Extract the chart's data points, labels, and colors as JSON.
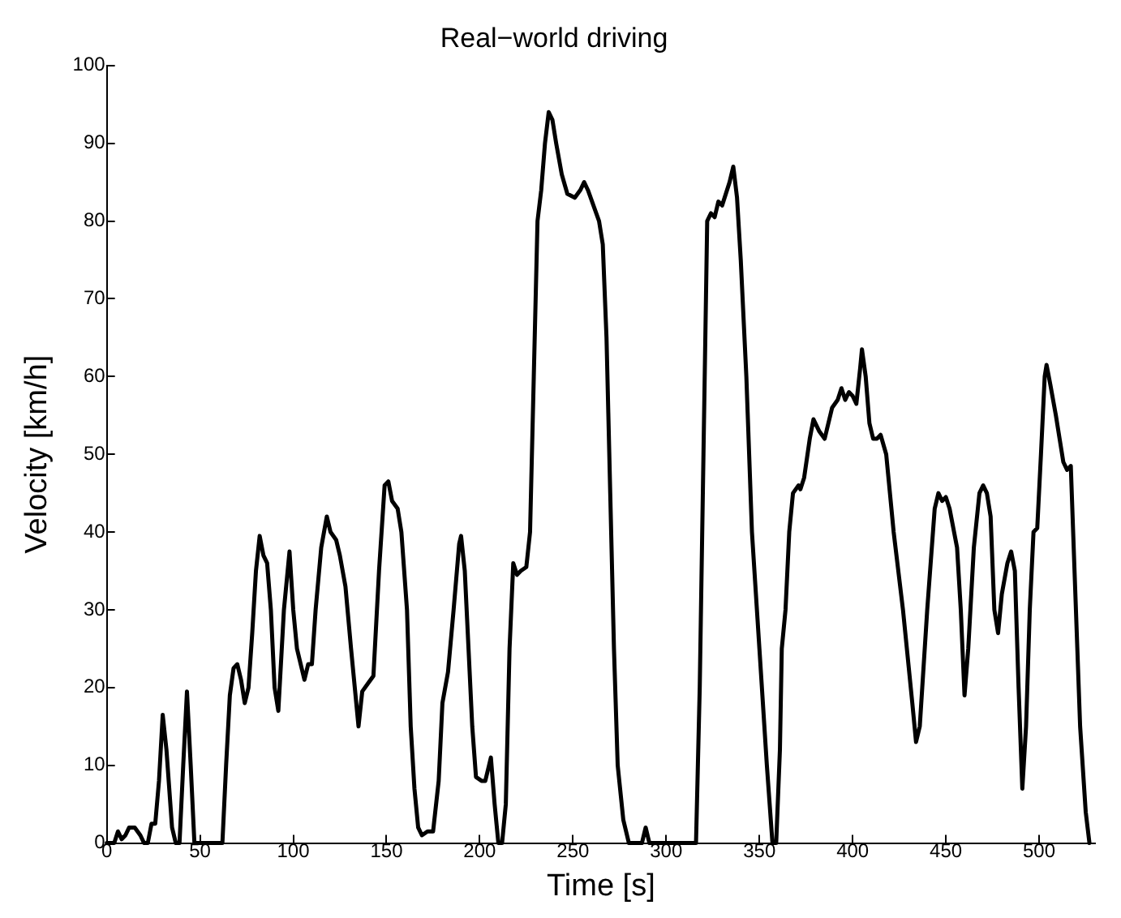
{
  "chart_data": {
    "type": "line",
    "title": "Real−world driving",
    "xlabel": "Time [s]",
    "ylabel": "Velocity [km/h]",
    "x": [
      0,
      4,
      6,
      8,
      10,
      12,
      15,
      18,
      20,
      22,
      24,
      26,
      28,
      30,
      32,
      35,
      37,
      39,
      41,
      43,
      45,
      47,
      62,
      64,
      66,
      68,
      70,
      72,
      74,
      76,
      78,
      80,
      82,
      84,
      86,
      88,
      90,
      92,
      95,
      98,
      100,
      102,
      104,
      106,
      108,
      110,
      112,
      115,
      118,
      120,
      123,
      125,
      128,
      131,
      133,
      135,
      137,
      140,
      143,
      146,
      149,
      151,
      153,
      156,
      158,
      161,
      163,
      165,
      167,
      169,
      172,
      175,
      178,
      180,
      183,
      186,
      189,
      190,
      192,
      194,
      196,
      198,
      201,
      203,
      205,
      206,
      208,
      210,
      212,
      214,
      216,
      218,
      220,
      222,
      225,
      227,
      229,
      231,
      233,
      235,
      237,
      239,
      241,
      244,
      247,
      251,
      254,
      256,
      258,
      261,
      264,
      266,
      268,
      270,
      272,
      274,
      277,
      280,
      287,
      289,
      291,
      316,
      318,
      320,
      322,
      324,
      326,
      328,
      330,
      334,
      336,
      338,
      340,
      343,
      346,
      350,
      354,
      357,
      359,
      361,
      362,
      364,
      366,
      368,
      371,
      372,
      374,
      377,
      379,
      382,
      385,
      389,
      392,
      394,
      396,
      398,
      400,
      402,
      404,
      405,
      407,
      409,
      411,
      413,
      415,
      418,
      422,
      427,
      432,
      434,
      436,
      440,
      444,
      446,
      448,
      450,
      452,
      456,
      458,
      460,
      462,
      465,
      468,
      470,
      472,
      474,
      476,
      478,
      480,
      483,
      485,
      487,
      489,
      491,
      493,
      495,
      497,
      499,
      501,
      503,
      504,
      506,
      509,
      511,
      513,
      515,
      517,
      519,
      522,
      525,
      527
    ],
    "series": [
      {
        "color": "#000000",
        "values": [
          0,
          0,
          1.5,
          0.5,
          1,
          2,
          2,
          1,
          0,
          0,
          2.5,
          2.5,
          8,
          16.5,
          12,
          2,
          0,
          0,
          10,
          19.5,
          10,
          0,
          0,
          10,
          19,
          22.5,
          23,
          21,
          18,
          20,
          27,
          35,
          39.5,
          37,
          36,
          30,
          20,
          17,
          30,
          37.5,
          30,
          25,
          23,
          21,
          23,
          23,
          30,
          38,
          42,
          40,
          39,
          37,
          33,
          25,
          20,
          15,
          19.5,
          20.5,
          21.5,
          35,
          46,
          46.5,
          44,
          43,
          40,
          30,
          15,
          7,
          2,
          1,
          1.5,
          1.5,
          8,
          18,
          22,
          30,
          38.5,
          39.5,
          35,
          25,
          15,
          8.5,
          8,
          8,
          10,
          11,
          5,
          0,
          0,
          5,
          25,
          36,
          34.5,
          35,
          35.5,
          40,
          60,
          80,
          84,
          90,
          94,
          93,
          90,
          86,
          83.5,
          83,
          84,
          85,
          84,
          82,
          80,
          77,
          65,
          45,
          25,
          10,
          3,
          0,
          0,
          2,
          0,
          0,
          20,
          50,
          80,
          81,
          80.5,
          82.5,
          82,
          85,
          87,
          83,
          75,
          60,
          40,
          25,
          10,
          0,
          0,
          12,
          25,
          30,
          40,
          45,
          46,
          45.5,
          47,
          52,
          54.5,
          53,
          52,
          56,
          57,
          58.5,
          57,
          58,
          57.5,
          56.5,
          61,
          63.5,
          60,
          54,
          52,
          52,
          52.5,
          50,
          40,
          30,
          18,
          13,
          15,
          30,
          43,
          45,
          44,
          44.5,
          43,
          38,
          30,
          19,
          25,
          38,
          45,
          46,
          45,
          42,
          30,
          27,
          32,
          36,
          37.5,
          35,
          20,
          7,
          15,
          30,
          40,
          40.5,
          50,
          60,
          61.5,
          59,
          55,
          52,
          49,
          48,
          48.5,
          35,
          15,
          4,
          0
        ]
      }
    ],
    "xlim": [
      0,
      530
    ],
    "xticks": [
      0,
      50,
      100,
      150,
      200,
      250,
      300,
      350,
      400,
      450,
      500
    ],
    "ylim": [
      0,
      100
    ],
    "yticks": [
      0,
      10,
      20,
      30,
      40,
      50,
      60,
      70,
      80,
      90,
      100
    ],
    "grid": false,
    "legend": false,
    "marker": "none",
    "line_style": "solid"
  }
}
